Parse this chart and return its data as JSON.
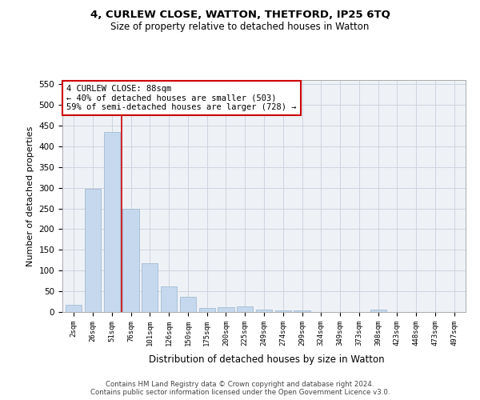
{
  "title1": "4, CURLEW CLOSE, WATTON, THETFORD, IP25 6TQ",
  "title2": "Size of property relative to detached houses in Watton",
  "xlabel": "Distribution of detached houses by size in Watton",
  "ylabel": "Number of detached properties",
  "footer1": "Contains HM Land Registry data © Crown copyright and database right 2024.",
  "footer2": "Contains public sector information licensed under the Open Government Licence v3.0.",
  "annotation_line1": "4 CURLEW CLOSE: 88sqm",
  "annotation_line2": "← 40% of detached houses are smaller (503)",
  "annotation_line3": "59% of semi-detached houses are larger (728) →",
  "bar_labels": [
    "2sqm",
    "26sqm",
    "51sqm",
    "76sqm",
    "101sqm",
    "126sqm",
    "150sqm",
    "175sqm",
    "200sqm",
    "225sqm",
    "249sqm",
    "274sqm",
    "299sqm",
    "324sqm",
    "349sqm",
    "373sqm",
    "398sqm",
    "423sqm",
    "448sqm",
    "473sqm",
    "497sqm"
  ],
  "bar_values": [
    18,
    297,
    435,
    250,
    118,
    62,
    37,
    10,
    11,
    13,
    6,
    4,
    4,
    0,
    0,
    0,
    5,
    0,
    0,
    0,
    0
  ],
  "bar_color": "#c5d8ed",
  "bar_edge_color": "#9ab4cc",
  "vline_color": "#cc0000",
  "vline_x": 3.5,
  "annotation_box_edgecolor": "#cc0000",
  "grid_color": "#c8d0db",
  "bg_color": "#eef2f7",
  "ylim": [
    0,
    560
  ],
  "yticks": [
    0,
    50,
    100,
    150,
    200,
    250,
    300,
    350,
    400,
    450,
    500,
    550
  ]
}
